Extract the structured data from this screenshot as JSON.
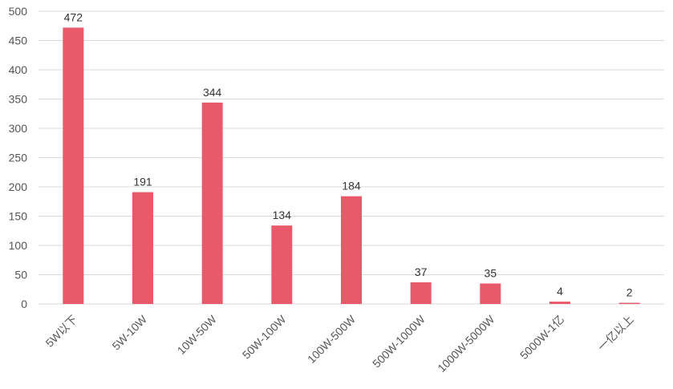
{
  "chart_data": {
    "type": "bar",
    "categories": [
      "5W以下",
      "5W-10W",
      "10W-50W",
      "50W-100W",
      "100W-500W",
      "500W-1000W",
      "1000W-5000W",
      "5000W-1亿",
      "一亿以上"
    ],
    "values": [
      472,
      191,
      344,
      134,
      184,
      37,
      35,
      4,
      2
    ],
    "color": "#e85a69",
    "ylim": [
      0,
      500
    ],
    "yticks": [
      0,
      50,
      100,
      150,
      200,
      250,
      300,
      350,
      400,
      450,
      500
    ],
    "grid": true
  }
}
